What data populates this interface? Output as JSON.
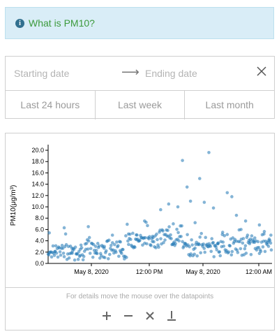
{
  "info": {
    "text": "What is PM10?",
    "icon": "info-circle-icon"
  },
  "date_range": {
    "start_placeholder": "Starting date",
    "end_placeholder": "Ending date",
    "quick_ranges": [
      "Last 24 hours",
      "Last week",
      "Last month"
    ]
  },
  "chart_hint": "For details move the mouse over the datapoints",
  "tools": [
    "zoom-in-icon",
    "zoom-out-icon",
    "reset-icon",
    "download-icon"
  ],
  "colors": {
    "point": "#1f77b4",
    "info_text": "#3c9a3c",
    "info_bg": "#d9edf7"
  },
  "chart_data": {
    "type": "scatter",
    "title": "",
    "xlabel": "",
    "ylabel": "PM10(μg/m³)",
    "ylim": [
      0,
      20.5
    ],
    "yticks": [
      "0.0",
      "2.0",
      "4.0",
      "6.0",
      "8.0",
      "10.0",
      "12.0",
      "14.0",
      "16.0",
      "18.0",
      "20.0"
    ],
    "xlim": [
      "2020-05-07T16:00",
      "2020-05-09T00:30"
    ],
    "xticks": [
      {
        "t": "2020-05-08T00:00",
        "label": "May 8, 2020"
      },
      {
        "t": "2020-05-08T12:00",
        "label": "12:00 PM"
      },
      {
        "t": "2020-05-08T00:00+1",
        "label": "May 8, 2020"
      },
      {
        "t": "2020-05-09T00:00",
        "label": "12:00 AM"
      }
    ],
    "series": [
      {
        "x": [
          "2020-05-07T16:10",
          "2020-05-07T17:00",
          "2020-05-07T18:20",
          "2020-05-07T19:30",
          "2020-05-07T20:40",
          "2020-05-07T21:50",
          "2020-05-07T23:00",
          "2020-05-08T00:10",
          "2020-05-08T01:20",
          "2020-05-08T02:30",
          "2020-05-08T03:40",
          "2020-05-08T04:50",
          "2020-05-08T06:00",
          "2020-05-08T07:10",
          "2020-05-08T08:20",
          "2020-05-08T09:30",
          "2020-05-08T10:10",
          "2020-05-08T10:50",
          "2020-05-08T11:30",
          "2020-05-08T12:10",
          "2020-05-08T12:40",
          "2020-05-08T13:20",
          "2020-05-08T14:00",
          "2020-05-08T14:40",
          "2020-05-08T15:20",
          "2020-05-08T16:00",
          "2020-05-08T16:40",
          "2020-05-08T17:20",
          "2020-05-08T18:00",
          "2020-05-08T18:40",
          "2020-05-08T19:20",
          "2020-05-08T20:00",
          "2020-05-08T20:40",
          "2020-05-08T21:20",
          "2020-05-08T22:00",
          "2020-05-08T22:40",
          "2020-05-08T23:20",
          "2020-05-09T00:00",
          "2020-05-09T00:20"
        ],
        "y": [
          5.4,
          2.1,
          6.3,
          1.8,
          2.5,
          6.5,
          2.3,
          3.0,
          5.0,
          3.8,
          5.2,
          4.2,
          7.5,
          4.8,
          9.5,
          10.5,
          7.0,
          10.0,
          18.2,
          13.5,
          11.0,
          7.2,
          15.0,
          10.8,
          19.6,
          9.8,
          3.5,
          5.5,
          12.5,
          11.8,
          8.5,
          6.0,
          7.5,
          3.8,
          4.5,
          6.8,
          5.2,
          4.0,
          5.0
        ]
      }
    ]
  }
}
